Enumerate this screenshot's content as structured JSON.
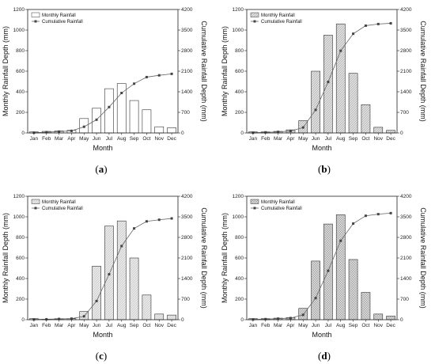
{
  "chart_data": [
    {
      "panel": "a",
      "type": "bar",
      "categories": [
        "Jan",
        "Feb",
        "Mar",
        "Apr",
        "May",
        "Jun",
        "Jul",
        "Aug",
        "Sep",
        "Oct",
        "Nov",
        "Dec"
      ],
      "series": [
        {
          "name": "Monthly Rainfall",
          "type": "bar",
          "axis": "left",
          "values": [
            10,
            15,
            20,
            25,
            140,
            240,
            430,
            480,
            315,
            225,
            60,
            50
          ]
        },
        {
          "name": "Cumulative Rainfall",
          "type": "line",
          "axis": "right",
          "values": [
            10,
            25,
            45,
            70,
            210,
            450,
            880,
            1360,
            1675,
            1900,
            1960,
            2010
          ]
        }
      ],
      "xlabel": "Month",
      "ylabel": "Monthly Rainfall Depth (mm)",
      "y2label": "Cumulative Rainfall Depth (mm)",
      "ylim": [
        0,
        1200
      ],
      "y2lim": [
        0,
        4200
      ],
      "yticks": [
        0,
        200,
        400,
        600,
        800,
        1000,
        1200
      ],
      "y2ticks": [
        0,
        700,
        1400,
        2100,
        2800,
        3500,
        4200
      ],
      "legend": "top-left",
      "bar_fill": "none",
      "label": "(a)"
    },
    {
      "panel": "b",
      "type": "bar",
      "categories": [
        "Jan",
        "Feb",
        "Mar",
        "Apr",
        "May",
        "Jun",
        "Jul",
        "Aug",
        "Sep",
        "Oct",
        "Nov",
        "Dec"
      ],
      "series": [
        {
          "name": "Monthly Rainfall",
          "type": "bar",
          "axis": "left",
          "values": [
            10,
            10,
            15,
            30,
            120,
            600,
            950,
            1060,
            580,
            275,
            55,
            25
          ]
        },
        {
          "name": "Cumulative Rainfall",
          "type": "line",
          "axis": "right",
          "values": [
            10,
            20,
            35,
            65,
            185,
            785,
            1735,
            2795,
            3375,
            3650,
            3705,
            3730
          ]
        }
      ],
      "xlabel": "Month",
      "ylabel": "Monthly Rainfall Depth (mm)",
      "y2label": "Cumulative Rainfall Depth (mm)",
      "ylim": [
        0,
        1200
      ],
      "y2lim": [
        0,
        4200
      ],
      "yticks": [
        0,
        200,
        400,
        600,
        800,
        1000,
        1200
      ],
      "y2ticks": [
        0,
        700,
        1400,
        2100,
        2800,
        3500,
        4200
      ],
      "legend": "top-left",
      "bar_fill": "dense-hatch",
      "label": "(b)"
    },
    {
      "panel": "c",
      "type": "bar",
      "categories": [
        "Jan",
        "Feb",
        "Mar",
        "Apr",
        "May",
        "Jun",
        "Jul",
        "Aug",
        "Sep",
        "Oct",
        "Nov",
        "Dec"
      ],
      "series": [
        {
          "name": "Monthly Rainfall",
          "type": "bar",
          "axis": "left",
          "values": [
            10,
            5,
            10,
            10,
            80,
            520,
            910,
            960,
            600,
            240,
            55,
            45
          ]
        },
        {
          "name": "Cumulative Rainfall",
          "type": "line",
          "axis": "right",
          "values": [
            10,
            15,
            25,
            35,
            115,
            635,
            1545,
            2505,
            3105,
            3345,
            3400,
            3445
          ]
        }
      ],
      "xlabel": "Month",
      "ylabel": "Monthly Rainfall Depth (mm)",
      "y2label": "Cumulative Rainfall Depth (mm)",
      "ylim": [
        0,
        1200
      ],
      "y2lim": [
        0,
        4200
      ],
      "yticks": [
        0,
        200,
        400,
        600,
        800,
        1000,
        1200
      ],
      "y2ticks": [
        0,
        700,
        1400,
        2100,
        2800,
        3500,
        4200
      ],
      "legend": "top-left",
      "bar_fill": "light-hatch",
      "label": "(c)"
    },
    {
      "panel": "d",
      "type": "bar",
      "categories": [
        "Jan",
        "Feb",
        "Mar",
        "Apr",
        "May",
        "Jun",
        "Jul",
        "Aug",
        "Sep",
        "Oct",
        "Nov",
        "Dec"
      ],
      "series": [
        {
          "name": "Monthly Rainfall",
          "type": "bar",
          "axis": "left",
          "values": [
            10,
            10,
            15,
            20,
            110,
            570,
            930,
            1020,
            585,
            265,
            55,
            35
          ]
        },
        {
          "name": "Cumulative Rainfall",
          "type": "line",
          "axis": "right",
          "values": [
            10,
            20,
            35,
            55,
            165,
            735,
            1665,
            2685,
            3270,
            3535,
            3590,
            3625
          ]
        }
      ],
      "xlabel": "Month",
      "ylabel": "Monthly Rainfall Depth (mm)",
      "y2label": "Cumulative Rainfall Depth (mm)",
      "ylim": [
        0,
        1200
      ],
      "y2lim": [
        0,
        4200
      ],
      "yticks": [
        0,
        200,
        400,
        600,
        800,
        1000,
        1200
      ],
      "y2ticks": [
        0,
        700,
        1400,
        2100,
        2800,
        3500,
        4200
      ],
      "legend": "top-left",
      "bar_fill": "cross-hatch",
      "label": "(d)"
    }
  ]
}
